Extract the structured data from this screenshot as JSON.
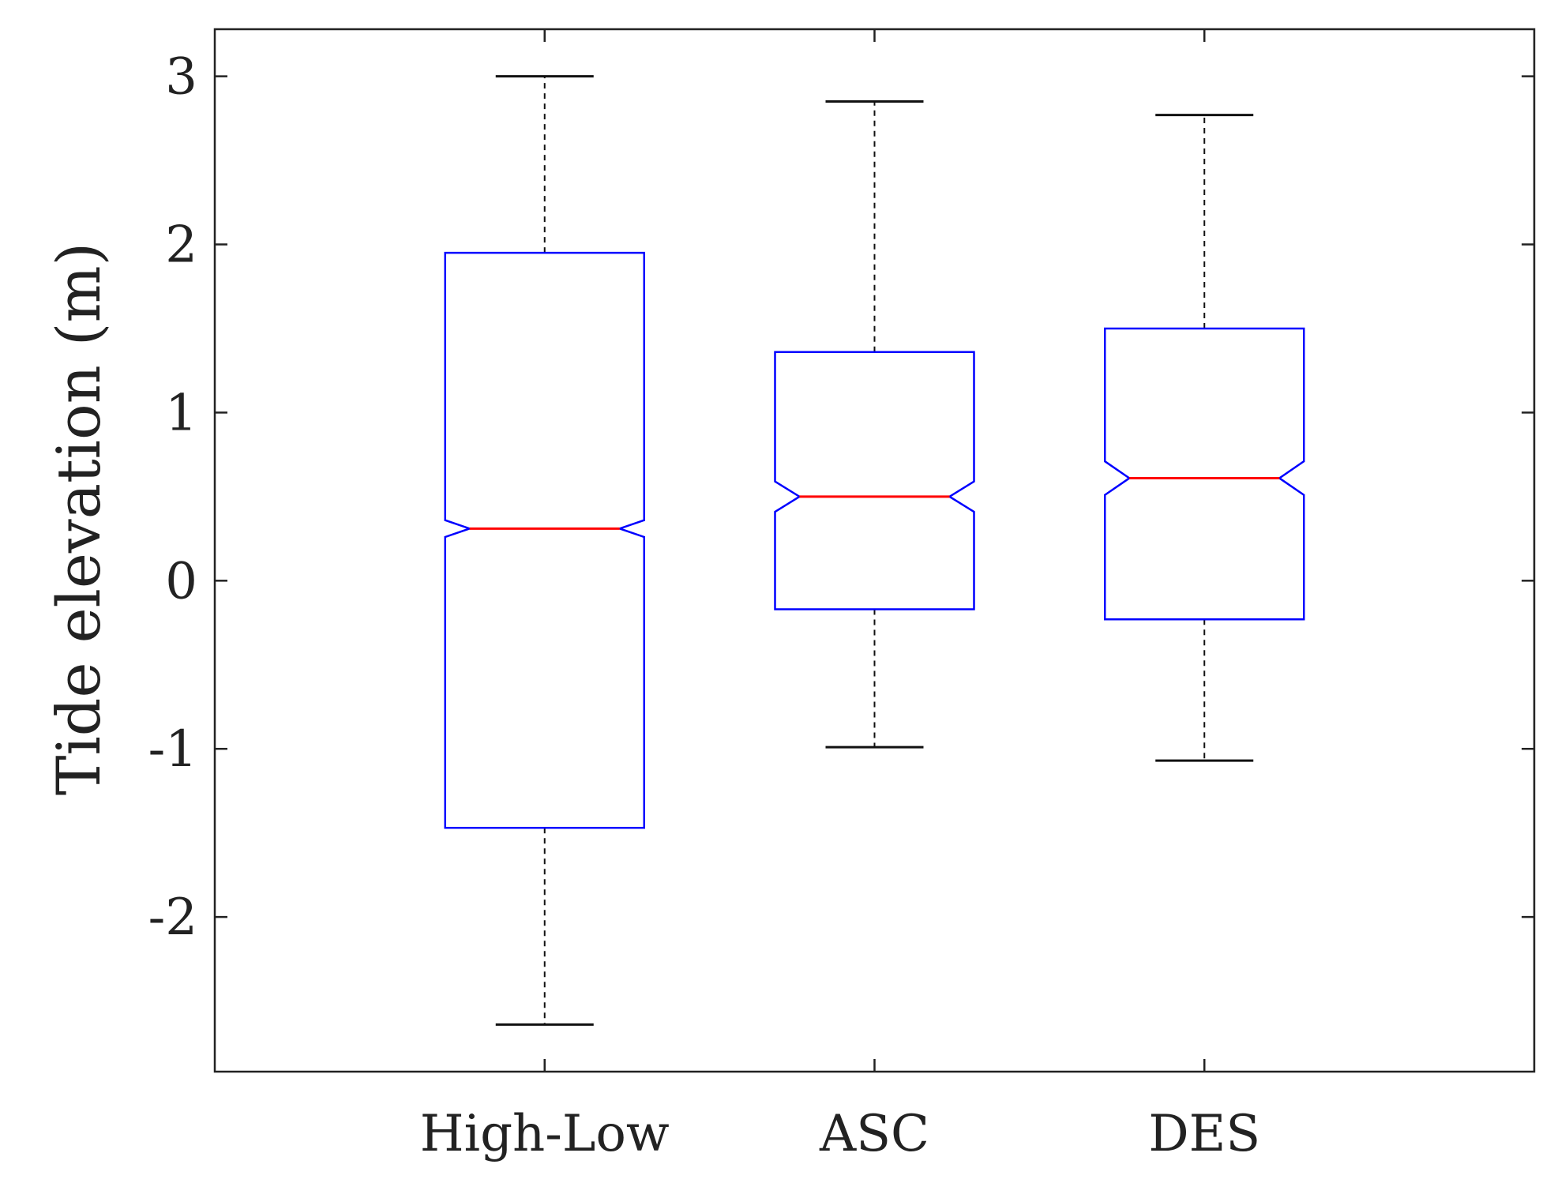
{
  "chart_data": {
    "type": "boxplot",
    "notched": true,
    "title": "",
    "xlabel": "",
    "ylabel": "Tide elevation (m)",
    "ylim": [
      -2.92,
      3.28
    ],
    "yticks": [
      -2,
      -1,
      0,
      1,
      2,
      3
    ],
    "ytick_labels": [
      "-2",
      "-1",
      "0",
      "1",
      "2",
      "3"
    ],
    "categories": [
      "High-Low",
      "ASC",
      "DES"
    ],
    "boxes": [
      {
        "name": "High-Low",
        "whisker_low": -2.64,
        "q1": -1.47,
        "median": 0.31,
        "q3": 1.95,
        "whisker_high": 3.0,
        "notch_low": 0.26,
        "notch_high": 0.36
      },
      {
        "name": "ASC",
        "whisker_low": -0.99,
        "q1": -0.17,
        "median": 0.5,
        "q3": 1.36,
        "whisker_high": 2.85,
        "notch_low": 0.41,
        "notch_high": 0.59
      },
      {
        "name": "DES",
        "whisker_low": -1.07,
        "q1": -0.23,
        "median": 0.61,
        "q3": 1.5,
        "whisker_high": 2.77,
        "notch_low": 0.51,
        "notch_high": 0.71
      }
    ],
    "colors": {
      "box": "#0000ff",
      "median": "#ff0000",
      "whisker": "#111111",
      "axis": "#222222"
    }
  }
}
